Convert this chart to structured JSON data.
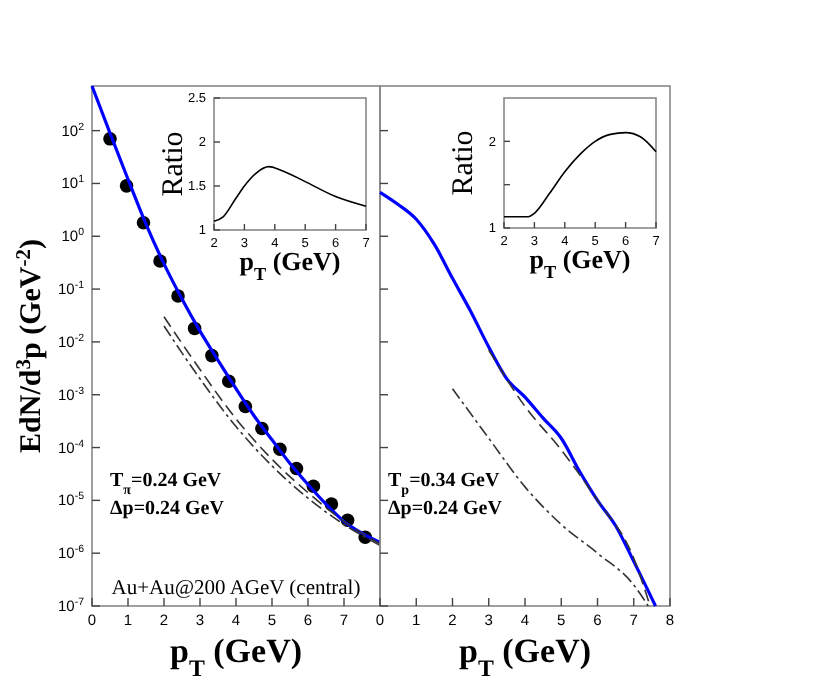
{
  "chart_data": [
    {
      "type": "line",
      "xlabel": "p$_{T}$ (GeV)",
      "ylabel": "EdN/d$^{3}$p (GeV$^{-2}$)",
      "log": "y",
      "xlim": [
        0,
        8
      ],
      "ylim": [
        1e-07,
        700
      ],
      "xticks": [
        0,
        1,
        2,
        3,
        4,
        5,
        6,
        7
      ],
      "yticks": [
        {
          "value": 1e-07,
          "label": "10$^{-7}$"
        },
        {
          "value": 1e-06,
          "label": "10$^{-6}$"
        },
        {
          "value": 1e-05,
          "label": "10$^{-5}$"
        },
        {
          "value": 0.0001,
          "label": "10$^{-4}$"
        },
        {
          "value": 0.001,
          "label": "10$^{-3}$"
        },
        {
          "value": 0.01,
          "label": "10$^{-2}$"
        },
        {
          "value": 0.1,
          "label": "10$^{-1}$"
        },
        {
          "value": 1,
          "label": "10$^{0}$"
        },
        {
          "value": 10,
          "label": "10$^{1}$"
        },
        {
          "value": 100,
          "label": "10$^{2}$"
        }
      ],
      "annotations": [
        "T$_{π}$=0.24 GeV",
        "Δp=0.24 GeV",
        "Au+Au@200 AGeV (central)"
      ],
      "series": [
        {
          "type": "scatter",
          "marker": "circle",
          "color": "#000000",
          "x": [
            0.5,
            0.96,
            1.43,
            1.89,
            2.39,
            2.85,
            3.33,
            3.8,
            4.26,
            4.72,
            5.22,
            5.68,
            6.15,
            6.65,
            7.1,
            7.59
          ],
          "values": [
            70,
            9,
            1.8,
            0.34,
            0.074,
            0.018,
            0.0055,
            0.0018,
            0.0006,
            0.00023,
            9.3e-05,
            4e-05,
            1.85e-05,
            8.5e-06,
            4.2e-06,
            2e-06
          ]
        },
        {
          "line_style": "solid",
          "color": "#0000ff",
          "x": [
            0,
            0.5,
            1,
            1.5,
            2,
            2.5,
            3,
            3.5,
            4,
            4.5,
            5,
            5.5,
            6,
            6.5,
            7,
            7.5,
            8
          ],
          "values": [
            700,
            90,
            12,
            1.7,
            0.3,
            0.065,
            0.016,
            0.0045,
            0.0013,
            0.0004,
            0.00014,
            5e-05,
            2e-05,
            8.5e-06,
            4e-06,
            2.4e-06,
            1.6e-06
          ]
        },
        {
          "line_style": "dashed",
          "color": "#333333",
          "x": [
            2,
            3,
            4,
            5,
            6,
            7,
            8
          ],
          "values": [
            0.03,
            0.003,
            0.00035,
            6e-05,
            1.4e-05,
            4e-06,
            1.5e-06
          ]
        },
        {
          "line_style": "dashdot",
          "color": "#333333",
          "x": [
            2,
            3,
            4,
            5,
            6,
            7,
            8
          ],
          "values": [
            0.02,
            0.002,
            0.00025,
            4.5e-05,
            1.1e-05,
            3.5e-06,
            1.4e-06
          ]
        }
      ]
    },
    {
      "type": "line",
      "xlabel": "p$_{T}$ (GeV)",
      "ylabel": "Ratio",
      "xlim": [
        2,
        7
      ],
      "ylim": [
        1,
        2.5
      ],
      "xticks": [
        2,
        3,
        4,
        5,
        6,
        7
      ],
      "yticks": [
        1,
        1.5,
        2,
        2.5
      ],
      "series": [
        {
          "line_style": "solid",
          "color": "#000000",
          "x": [
            2,
            2.3,
            2.7,
            3,
            3.4,
            3.8,
            4.2,
            5,
            6,
            7
          ],
          "values": [
            1.1,
            1.15,
            1.35,
            1.5,
            1.65,
            1.72,
            1.68,
            1.55,
            1.38,
            1.27
          ]
        }
      ]
    },
    {
      "type": "line",
      "xlabel": "p$_{T}$ (GeV)",
      "log": "y",
      "xlim": [
        0,
        8
      ],
      "ylim": [
        1e-07,
        700
      ],
      "xticks": [
        0,
        1,
        2,
        3,
        4,
        5,
        6,
        7,
        8
      ],
      "yticks": [
        1e-07,
        1e-06,
        1e-05,
        0.0001,
        0.001,
        0.01,
        0.1,
        1,
        10,
        100
      ],
      "tick_labels": "x",
      "annotations": [
        "T$_{p}$=0.34 GeV",
        "Δp=0.24 GeV"
      ],
      "series": [
        {
          "line_style": "solid",
          "color": "#0000ff",
          "x": [
            0,
            0.5,
            1,
            1.5,
            2,
            2.5,
            3,
            3.5,
            4,
            4.5,
            5,
            5.5,
            6,
            6.5,
            7,
            7.6
          ],
          "values": [
            6.8,
            4,
            2.1,
            0.7,
            0.16,
            0.038,
            0.008,
            0.002,
            0.0009,
            0.00036,
            0.00015,
            3.6e-05,
            1e-05,
            3.3e-06,
            7e-07,
            1e-07
          ]
        },
        {
          "line_style": "dashed",
          "color": "#333333",
          "x": [
            3,
            4,
            5,
            6,
            7,
            7.45
          ],
          "values": [
            0.007,
            0.0006,
            9e-05,
            1e-05,
            8e-07,
            1e-07
          ]
        },
        {
          "line_style": "dashdot",
          "color": "#333333",
          "x": [
            2,
            3,
            4,
            5,
            6,
            7,
            7.4
          ],
          "values": [
            0.0013,
            0.00015,
            1.8e-05,
            3.5e-06,
            1e-06,
            2.5e-07,
            1e-07
          ]
        }
      ]
    },
    {
      "type": "line",
      "xlabel": "p$_{T}$ (GeV)",
      "ylabel": "Ratio",
      "xlim": [
        2,
        7
      ],
      "ylim": [
        1,
        2.5
      ],
      "xticks": [
        2,
        3,
        4,
        5,
        6,
        7
      ],
      "yticks": [
        1,
        {
          "value": 1.5,
          "label": null
        },
        2
      ],
      "series": [
        {
          "line_style": "solid",
          "color": "#000000",
          "x": [
            2,
            2.8,
            3,
            3.5,
            4,
            4.5,
            5,
            5.5,
            6,
            6.5,
            7
          ],
          "values": [
            1.13,
            1.13,
            1.17,
            1.4,
            1.65,
            1.85,
            2.0,
            2.08,
            2.1,
            2.05,
            1.88
          ]
        }
      ]
    }
  ]
}
